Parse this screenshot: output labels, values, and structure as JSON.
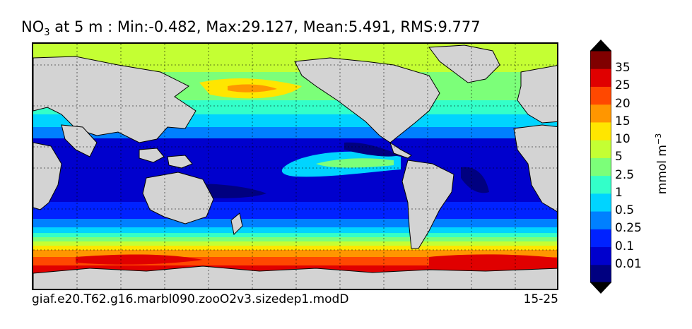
{
  "title": {
    "prefix": "NO",
    "subscript": "3",
    "suffix": " at 5 m : Min:-0.482, Max:29.127, Mean:5.491, RMS:9.777"
  },
  "footer": {
    "case_name": "giaf.e20.T62.g16.marbl090.zooO2v3.sizedep1.modD",
    "years": "15-25"
  },
  "colorbar": {
    "units_main": "mmol m",
    "units_exp": "−3",
    "ticks": [
      "35",
      "25",
      "20",
      "15",
      "10",
      "5",
      "2.5",
      "1",
      "0.5",
      "0.25",
      "0.1",
      "0.01"
    ],
    "colors": [
      "#000080",
      "#0000cd",
      "#0022ff",
      "#0080ff",
      "#00d4ff",
      "#33ffc9",
      "#7cff79",
      "#c4ff33",
      "#ffe600",
      "#ff9600",
      "#ff4800",
      "#e00000",
      "#800000"
    ]
  },
  "legend_colors": {
    "land": "#d3d3d3",
    "border": "#000000"
  }
}
